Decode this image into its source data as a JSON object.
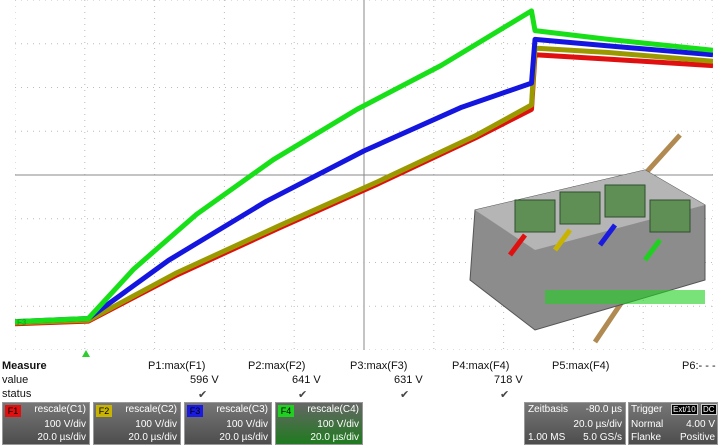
{
  "scope": {
    "grid": {
      "hdiv": 10,
      "vdiv": 8
    },
    "ground_marker_label": "F3",
    "trigger_marker_icon": "triangle-up-icon"
  },
  "chart_data": {
    "type": "line",
    "title": "",
    "xlabel": "",
    "ylabel": "",
    "xlim": [
      0,
      10
    ],
    "ylim": [
      0,
      8
    ],
    "series": [
      {
        "color": "#18e018",
        "x": [
          0,
          1.05,
          1.7,
          2.6,
          3.7,
          4.9,
          6.1,
          7.4,
          7.45,
          8.5,
          10
        ],
        "y": [
          0.65,
          0.72,
          1.85,
          3.1,
          4.35,
          5.5,
          6.5,
          7.75,
          7.3,
          7.1,
          6.85
        ]
      },
      {
        "color": "#1515e0",
        "x": [
          0,
          1.05,
          2.2,
          3.6,
          5.0,
          6.4,
          7.4,
          7.45,
          8.5,
          10
        ],
        "y": [
          0.65,
          0.72,
          2.05,
          3.4,
          4.55,
          5.55,
          6.1,
          7.1,
          6.95,
          6.75
        ]
      },
      {
        "color": "#9a9a00",
        "x": [
          0,
          1.05,
          2.3,
          3.8,
          5.2,
          6.6,
          7.4,
          7.45,
          8.5,
          10
        ],
        "y": [
          0.62,
          0.68,
          1.75,
          2.85,
          3.85,
          4.9,
          5.6,
          6.9,
          6.8,
          6.6
        ]
      },
      {
        "color": "#e01010",
        "x": [
          0,
          1.05,
          2.3,
          3.8,
          5.2,
          6.6,
          7.4,
          7.45,
          8.5,
          10
        ],
        "y": [
          0.6,
          0.66,
          1.7,
          2.8,
          3.8,
          4.85,
          5.5,
          6.75,
          6.65,
          6.5
        ]
      }
    ]
  },
  "measure": {
    "label_measure": "Measure",
    "label_value": "value",
    "label_status": "status",
    "params": [
      {
        "name": "P1:max(F1)",
        "value": "596 V",
        "status": "✔"
      },
      {
        "name": "P2:max(F2)",
        "value": "641 V",
        "status": "✔"
      },
      {
        "name": "P3:max(F3)",
        "value": "631 V",
        "status": "✔"
      },
      {
        "name": "P4:max(F4)",
        "value": "718 V",
        "status": "✔"
      },
      {
        "name": "P5:max(F4)",
        "value": "",
        "status": ""
      },
      {
        "name": "P6:- - -",
        "value": "",
        "status": ""
      }
    ]
  },
  "channels": [
    {
      "tag": "F1",
      "tag_color": "#e01010",
      "name": "rescale(C1)",
      "vdiv": "100 V/div",
      "tdiv": "20.0 µs/div"
    },
    {
      "tag": "F2",
      "tag_color": "#c8b400",
      "name": "rescale(C2)",
      "vdiv": "100 V/div",
      "tdiv": "20.0 µs/div"
    },
    {
      "tag": "F3",
      "tag_color": "#1a1ae0",
      "name": "rescale(C3)",
      "vdiv": "100 V/div",
      "tdiv": "20.0 µs/div"
    },
    {
      "tag": "F4",
      "tag_color": "#20d020",
      "name": "rescale(C4)",
      "vdiv": "100 V/div",
      "tdiv": "20.0 µs/div"
    }
  ],
  "timebase": {
    "label": "Zeitbasis",
    "delay": "-80.0 µs",
    "tdiv": "20.0 µs/div",
    "samples": "1.00 MS",
    "rate": "5.0 GS/s"
  },
  "trigger": {
    "label": "Trigger",
    "source": "Ext/10",
    "coupling": "DC",
    "mode": "Normal",
    "level": "4.00 V",
    "slope_label": "Flanke",
    "slope": "Positive"
  }
}
